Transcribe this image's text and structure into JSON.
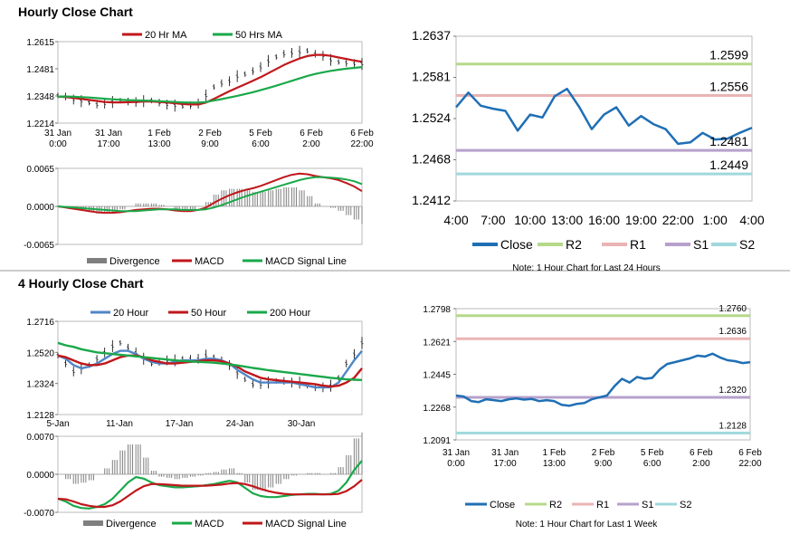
{
  "section1": {
    "title": "Hourly Close Chart"
  },
  "section2": {
    "title": "4 Hourly Close Chart"
  },
  "colors": {
    "close": "#1f6fb5",
    "r2": "#b5d98a",
    "r1": "#eab4b4",
    "s1": "#b7a1cc",
    "s2": "#9fd8dc",
    "ma_red": "#c0171b",
    "ma_green": "#1aa84a",
    "ma_blue": "#4f86c6",
    "divergence": "#7f7f7f"
  },
  "chart_data": [
    {
      "id": "hourly_price",
      "type": "line",
      "legend": [
        "20 Hr MA",
        "50 Hrs MA"
      ],
      "ylim": [
        1.2214,
        1.2615
      ],
      "yticks": [
        "1.2615",
        "1.2481",
        "1.2348",
        "1.2214"
      ],
      "xticks": [
        [
          "31 Jan",
          "0:00"
        ],
        [
          "31 Jan",
          "17:00"
        ],
        [
          "1 Feb",
          "13:00"
        ],
        [
          "2 Feb",
          "9:00"
        ],
        [
          "5 Feb",
          "6:00"
        ],
        [
          "6 Feb",
          "2:00"
        ],
        [
          "6 Feb",
          "22:00"
        ]
      ],
      "close": [
        1.235,
        1.2345,
        1.233,
        1.2322,
        1.2315,
        1.2305,
        1.231,
        1.2318,
        1.2325,
        1.232,
        1.2318,
        1.2322,
        1.2325,
        1.2315,
        1.2305,
        1.23,
        1.2298,
        1.2302,
        1.231,
        1.235,
        1.2392,
        1.241,
        1.242,
        1.2445,
        1.2455,
        1.247,
        1.249,
        1.252,
        1.254,
        1.2555,
        1.256,
        1.2565,
        1.257,
        1.2555,
        1.2545,
        1.2525,
        1.2515,
        1.251,
        1.2505,
        1.2505
      ],
      "series": [
        {
          "name": "20 Hr MA",
          "color": "#c0171b",
          "values": [
            1.2345,
            1.2342,
            1.2338,
            1.2333,
            1.2328,
            1.2323,
            1.2318,
            1.2316,
            1.2316,
            1.2317,
            1.2318,
            1.232,
            1.232,
            1.2318,
            1.2315,
            1.2312,
            1.2308,
            1.2306,
            1.2306,
            1.2315,
            1.2333,
            1.2352,
            1.2371,
            1.2388,
            1.2405,
            1.2422,
            1.244,
            1.246,
            1.248,
            1.25,
            1.2517,
            1.2532,
            1.2544,
            1.255,
            1.255,
            1.2545,
            1.2537,
            1.253,
            1.2522,
            1.2516
          ]
        },
        {
          "name": "50 Hrs MA",
          "color": "#1aa84a",
          "values": [
            1.2345,
            1.2345,
            1.2344,
            1.2342,
            1.234,
            1.2337,
            1.2334,
            1.2331,
            1.2329,
            1.2327,
            1.2326,
            1.2325,
            1.2324,
            1.2322,
            1.232,
            1.2318,
            1.2316,
            1.2315,
            1.2315,
            1.2318,
            1.2325,
            1.2332,
            1.234,
            1.2348,
            1.2357,
            1.2366,
            1.2376,
            1.2387,
            1.2398,
            1.241,
            1.2422,
            1.2434,
            1.2446,
            1.2456,
            1.2464,
            1.2471,
            1.2477,
            1.2482,
            1.2486,
            1.249
          ]
        }
      ]
    },
    {
      "id": "hourly_macd",
      "type": "line",
      "legend": [
        "Divergence",
        "MACD",
        "MACD Signal Line"
      ],
      "ylim": [
        -0.0065,
        0.0065
      ],
      "yticks": [
        "0.0065",
        "0.0000",
        "-0.0065"
      ],
      "series": [
        {
          "name": "MACD",
          "color": "#c0171b",
          "values": [
            0,
            -0.0002,
            -0.0004,
            -0.0006,
            -0.0008,
            -0.001,
            -0.0011,
            -0.0011,
            -0.001,
            -0.0008,
            -0.0006,
            -0.0005,
            -0.0004,
            -0.0004,
            -0.0005,
            -0.0007,
            -0.0008,
            -0.0008,
            -0.0006,
            -0.0002,
            0.0006,
            0.0013,
            0.0019,
            0.0024,
            0.0028,
            0.0031,
            0.0035,
            0.004,
            0.0045,
            0.005,
            0.0054,
            0.0056,
            0.0055,
            0.0052,
            0.005,
            0.0048,
            0.0045,
            0.004,
            0.0034,
            0.0026
          ]
        },
        {
          "name": "MACD Signal Line",
          "color": "#1aa84a",
          "values": [
            0,
            -0.0001,
            -0.0002,
            -0.0003,
            -0.0004,
            -0.0005,
            -0.0006,
            -0.0007,
            -0.0008,
            -0.0008,
            -0.0008,
            -0.0007,
            -0.0006,
            -0.0005,
            -0.0005,
            -0.0005,
            -0.0006,
            -0.0006,
            -0.0006,
            -0.0005,
            -0.0002,
            0.0002,
            0.0007,
            0.0012,
            0.0017,
            0.0021,
            0.0025,
            0.0029,
            0.0033,
            0.0037,
            0.0041,
            0.0045,
            0.0048,
            0.005,
            0.005,
            0.0049,
            0.0048,
            0.0046,
            0.0043,
            0.0038
          ]
        }
      ]
    },
    {
      "id": "hourly_close_24h",
      "type": "line",
      "ylim": [
        1.2412,
        1.2637
      ],
      "yticks": [
        "1.2637",
        "1.2581",
        "1.2524",
        "1.2468",
        "1.2412"
      ],
      "xticks": [
        "4:00",
        "7:00",
        "10:00",
        "13:00",
        "16:00",
        "19:00",
        "22:00",
        "1:00",
        "4:00"
      ],
      "legend": [
        "Close",
        "R2",
        "R1",
        "S1",
        "S2"
      ],
      "levels": {
        "R2": 1.2599,
        "R1": 1.2556,
        "S1": 1.2481,
        "S2": 1.2449
      },
      "level_labels": {
        "R2": "1.2599",
        "R1": "1.2556",
        "S1": "1.2481",
        "S2": "1.2449"
      },
      "close": [
        1.254,
        1.256,
        1.2542,
        1.2538,
        1.2535,
        1.2508,
        1.253,
        1.2526,
        1.2555,
        1.2565,
        1.254,
        1.251,
        1.253,
        1.254,
        1.2515,
        1.2528,
        1.2517,
        1.251,
        1.249,
        1.2492,
        1.2505,
        1.2496,
        1.2497,
        1.2505,
        1.2512
      ],
      "note": "Note: 1 Hour Chart for Last 24 Hours"
    },
    {
      "id": "four_hourly_price",
      "type": "line",
      "legend": [
        "20 Hour",
        "50 Hour",
        "200 Hour"
      ],
      "ylim": [
        1.2128,
        1.2716
      ],
      "yticks": [
        "1.2716",
        "1.2520",
        "1.2324",
        "1.2128"
      ],
      "xticks": [
        "5-Jan",
        "11-Jan",
        "17-Jan",
        "24-Jan",
        "30-Jan"
      ],
      "close": [
        1.25,
        1.245,
        1.24,
        1.242,
        1.244,
        1.248,
        1.252,
        1.256,
        1.258,
        1.255,
        1.252,
        1.248,
        1.245,
        1.246,
        1.247,
        1.247,
        1.248,
        1.248,
        1.248,
        1.25,
        1.249,
        1.247,
        1.244,
        1.239,
        1.235,
        1.232,
        1.232,
        1.233,
        1.234,
        1.234,
        1.233,
        1.233,
        1.231,
        1.23,
        1.23,
        1.231,
        1.236,
        1.245,
        1.251,
        1.258
      ],
      "series": [
        {
          "name": "20 Hour",
          "color": "#4f86c6",
          "values": [
            1.25,
            1.248,
            1.244,
            1.242,
            1.243,
            1.245,
            1.248,
            1.251,
            1.253,
            1.253,
            1.251,
            1.248,
            1.246,
            1.245,
            1.245,
            1.246,
            1.247,
            1.247,
            1.247,
            1.248,
            1.248,
            1.247,
            1.245,
            1.241,
            1.238,
            1.235,
            1.233,
            1.233,
            1.233,
            1.233,
            1.233,
            1.232,
            1.231,
            1.23,
            1.23,
            1.23,
            1.233,
            1.24,
            1.247,
            1.253
          ]
        },
        {
          "name": "50 Hour",
          "color": "#c0171b",
          "values": [
            1.25,
            1.249,
            1.247,
            1.245,
            1.244,
            1.244,
            1.245,
            1.247,
            1.249,
            1.25,
            1.25,
            1.249,
            1.247,
            1.246,
            1.245,
            1.245,
            1.2455,
            1.246,
            1.2465,
            1.247,
            1.247,
            1.2465,
            1.245,
            1.243,
            1.24,
            1.238,
            1.236,
            1.235,
            1.2345,
            1.234,
            1.2335,
            1.233,
            1.2325,
            1.232,
            1.231,
            1.2305,
            1.231,
            1.233,
            1.236,
            1.242
          ]
        },
        {
          "name": "200 Hour",
          "color": "#1aa84a",
          "values": [
            1.258,
            1.2565,
            1.2555,
            1.254,
            1.253,
            1.252,
            1.2515,
            1.251,
            1.2505,
            1.25,
            1.2495,
            1.249,
            1.2485,
            1.248,
            1.2475,
            1.247,
            1.2466,
            1.2463,
            1.246,
            1.2458,
            1.2455,
            1.245,
            1.2445,
            1.2438,
            1.243,
            1.2422,
            1.2415,
            1.2408,
            1.2402,
            1.2396,
            1.239,
            1.2384,
            1.2378,
            1.2372,
            1.2366,
            1.236,
            1.2355,
            1.235,
            1.2348,
            1.2346
          ]
        }
      ]
    },
    {
      "id": "four_hourly_macd",
      "type": "line",
      "legend": [
        "Divergence",
        "MACD",
        "MACD Signal Line"
      ],
      "ylim": [
        -0.007,
        0.007
      ],
      "yticks": [
        "0.0070",
        "0.0000",
        "-0.0070"
      ],
      "series": [
        {
          "name": "MACD",
          "color": "#1aa84a",
          "values": [
            -0.0045,
            -0.005,
            -0.0058,
            -0.0062,
            -0.0063,
            -0.006,
            -0.0055,
            -0.0045,
            -0.003,
            -0.0015,
            -0.0005,
            -0.0008,
            -0.0015,
            -0.002,
            -0.0022,
            -0.0024,
            -0.0024,
            -0.0023,
            -0.0022,
            -0.002,
            -0.0018,
            -0.0015,
            -0.0012,
            -0.0015,
            -0.0025,
            -0.0035,
            -0.004,
            -0.0042,
            -0.0042,
            -0.004,
            -0.0038,
            -0.0037,
            -0.0036,
            -0.0036,
            -0.0037,
            -0.0036,
            -0.003,
            -0.0015,
            0.0008,
            0.0025
          ]
        },
        {
          "name": "MACD Signal Line",
          "color": "#c0171b",
          "values": [
            -0.0045,
            -0.0046,
            -0.005,
            -0.0055,
            -0.0058,
            -0.006,
            -0.006,
            -0.0057,
            -0.005,
            -0.004,
            -0.003,
            -0.0022,
            -0.0018,
            -0.0018,
            -0.0019,
            -0.002,
            -0.0021,
            -0.0021,
            -0.0021,
            -0.0021,
            -0.002,
            -0.0019,
            -0.0017,
            -0.0016,
            -0.0018,
            -0.0022,
            -0.0027,
            -0.0031,
            -0.0034,
            -0.0036,
            -0.0037,
            -0.0037,
            -0.0037,
            -0.0037,
            -0.0037,
            -0.0037,
            -0.0036,
            -0.0031,
            -0.0022,
            -0.001
          ]
        }
      ]
    },
    {
      "id": "hourly_close_1week",
      "type": "line",
      "ylim": [
        1.2091,
        1.2798
      ],
      "yticks": [
        "1.2798",
        "1.2621",
        "1.2445",
        "1.2268",
        "1.2091"
      ],
      "xticks": [
        [
          "31 Jan",
          "0:00"
        ],
        [
          "31 Jan",
          "17:00"
        ],
        [
          "1 Feb",
          "13:00"
        ],
        [
          "2 Feb",
          "9:00"
        ],
        [
          "5 Feb",
          "6:00"
        ],
        [
          "6 Feb",
          "2:00"
        ],
        [
          "6 Feb",
          "22:00"
        ]
      ],
      "legend": [
        "Close",
        "R2",
        "R1",
        "S1",
        "S2"
      ],
      "levels": {
        "R2": 1.276,
        "R1": 1.2636,
        "S1": 1.232,
        "S2": 1.2128
      },
      "level_labels": {
        "R2": "1.2760",
        "R1": "1.2636",
        "S1": "1.2320",
        "S2": "1.2128"
      },
      "close": [
        1.233,
        1.2325,
        1.23,
        1.2295,
        1.231,
        1.2305,
        1.23,
        1.231,
        1.2315,
        1.2308,
        1.2312,
        1.23,
        1.2305,
        1.23,
        1.228,
        1.2275,
        1.2285,
        1.229,
        1.231,
        1.232,
        1.233,
        1.238,
        1.242,
        1.24,
        1.243,
        1.242,
        1.2425,
        1.247,
        1.25,
        1.251,
        1.252,
        1.253,
        1.2545,
        1.254,
        1.2555,
        1.2535,
        1.252,
        1.2515,
        1.2505,
        1.251
      ],
      "note": "Note: 1 Hour Chart for Last 1 Week"
    }
  ]
}
